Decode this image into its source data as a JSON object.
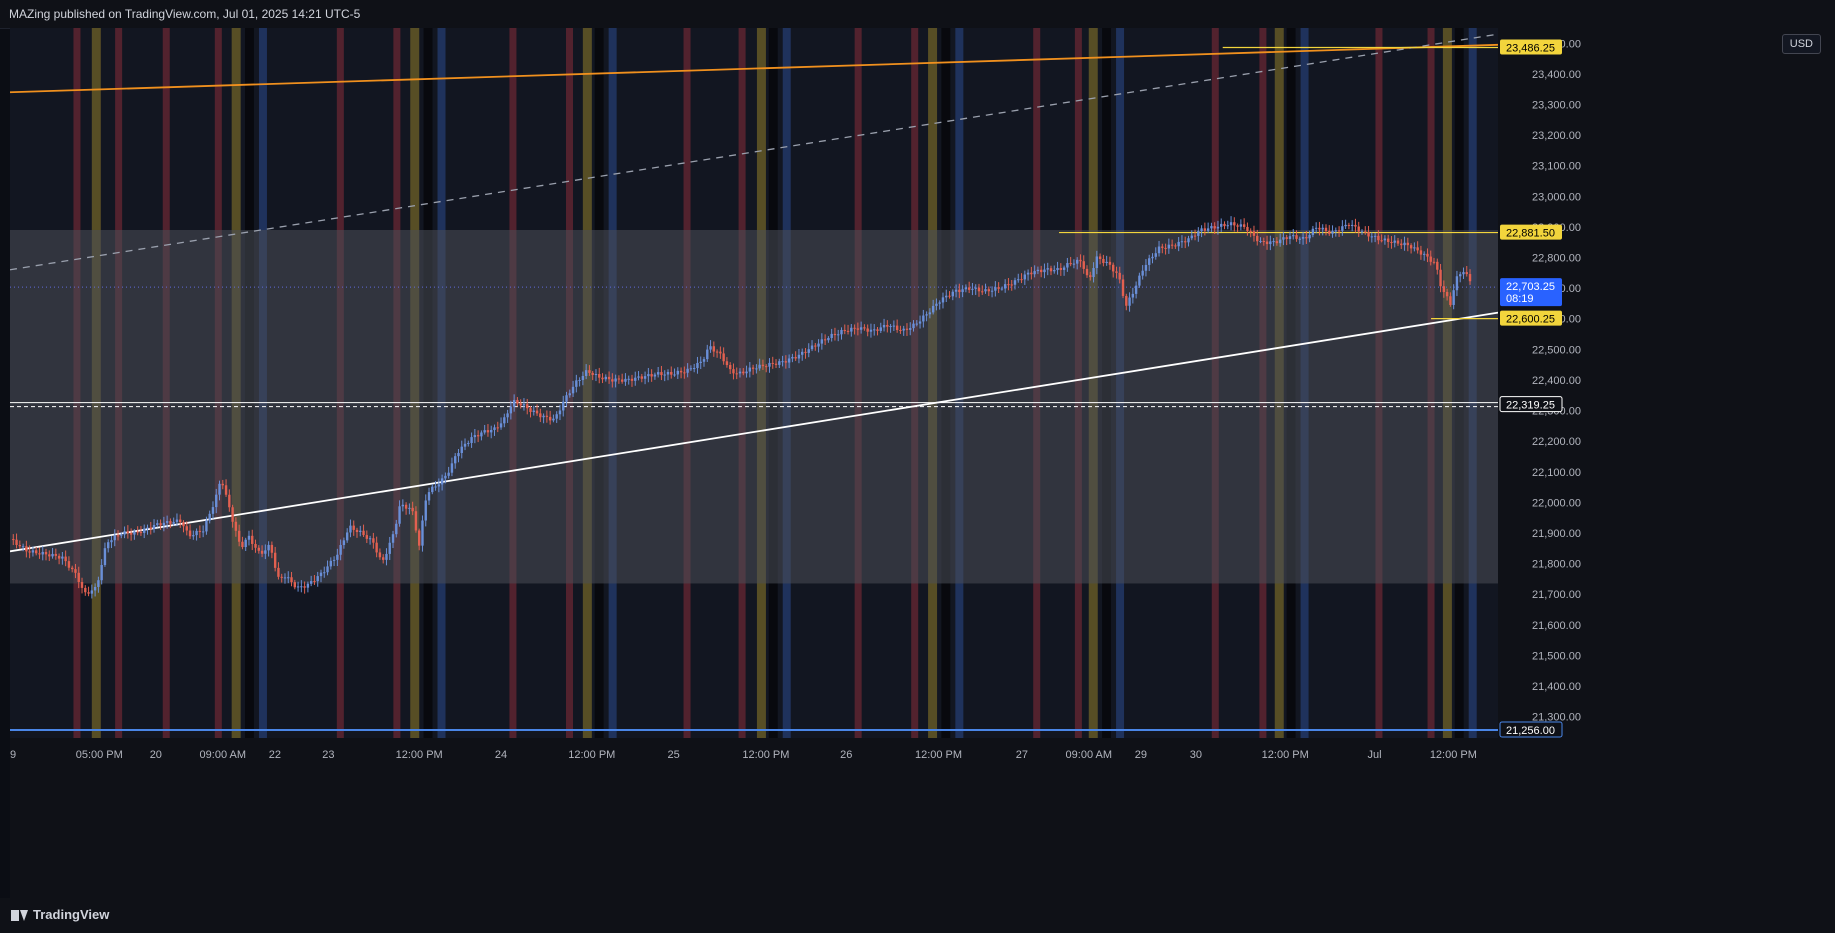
{
  "header": {
    "title": "MAZing published on TradingView.com, Jul 01, 2025 14:21 UTC-5"
  },
  "footer": {
    "brand": "TradingView"
  },
  "currency": "USD",
  "colors": {
    "bg": "#121621",
    "up": "#6a8fd8",
    "down": "#e26050",
    "band_fill": "#4a4e58",
    "stripe_red": "#5a2330",
    "stripe_gold": "#5f5426",
    "stripe_blue": "#213563",
    "orange": "#f0901e",
    "yellow": "#f2d53c",
    "white": "#ffffff",
    "blue_line": "#4a86e8"
  },
  "chart_data": {
    "type": "candlestick",
    "ylim": [
      21230,
      23550
    ],
    "y_ticks": [
      21300,
      21400,
      21500,
      21600,
      21700,
      21800,
      21900,
      22000,
      22100,
      22200,
      22300,
      22400,
      22500,
      22600,
      22700,
      22800,
      22900,
      23000,
      23100,
      23200,
      23300,
      23400,
      23500
    ],
    "y_tick_labels": [
      "21,300.00",
      "21,400.00",
      "21,500.00",
      "21,600.00",
      "21,700.00",
      "21,800.00",
      "21,900.00",
      "22,000.00",
      "22,100.00",
      "22,200.00",
      "22,300.00",
      "22,400.00",
      "22,500.00",
      "22,600.00",
      "22,700.00",
      "22,800.00",
      "22,900.00",
      "23,000.00",
      "23,100.00",
      "23,200.00",
      "23,300.00",
      "23,400.00",
      "23,500.00"
    ],
    "x_ticks": [
      {
        "pos": 0.0,
        "label": "9"
      },
      {
        "pos": 0.06,
        "label": "05:00 PM"
      },
      {
        "pos": 0.098,
        "label": "20"
      },
      {
        "pos": 0.143,
        "label": "09:00 AM"
      },
      {
        "pos": 0.178,
        "label": "22"
      },
      {
        "pos": 0.214,
        "label": "23"
      },
      {
        "pos": 0.275,
        "label": "12:00 PM"
      },
      {
        "pos": 0.33,
        "label": "24"
      },
      {
        "pos": 0.391,
        "label": "12:00 PM"
      },
      {
        "pos": 0.446,
        "label": "25"
      },
      {
        "pos": 0.508,
        "label": "12:00 PM"
      },
      {
        "pos": 0.562,
        "label": "26"
      },
      {
        "pos": 0.624,
        "label": "12:00 PM"
      },
      {
        "pos": 0.68,
        "label": "27"
      },
      {
        "pos": 0.725,
        "label": "09:00 AM"
      },
      {
        "pos": 0.76,
        "label": "29"
      },
      {
        "pos": 0.797,
        "label": "30"
      },
      {
        "pos": 0.857,
        "label": "12:00 PM"
      },
      {
        "pos": 0.917,
        "label": "Jul"
      },
      {
        "pos": 0.97,
        "label": "12:00 PM"
      }
    ],
    "price_path": [
      [
        0.0,
        21880
      ],
      [
        0.012,
        21840
      ],
      [
        0.025,
        21830
      ],
      [
        0.035,
        21820
      ],
      [
        0.045,
        21760
      ],
      [
        0.05,
        21700
      ],
      [
        0.058,
        21720
      ],
      [
        0.065,
        21870
      ],
      [
        0.075,
        21900
      ],
      [
        0.085,
        21900
      ],
      [
        0.1,
        21930
      ],
      [
        0.115,
        21940
      ],
      [
        0.12,
        21890
      ],
      [
        0.13,
        21910
      ],
      [
        0.138,
        22010
      ],
      [
        0.142,
        22080
      ],
      [
        0.148,
        21970
      ],
      [
        0.155,
        21850
      ],
      [
        0.16,
        21890
      ],
      [
        0.168,
        21830
      ],
      [
        0.175,
        21860
      ],
      [
        0.18,
        21750
      ],
      [
        0.185,
        21760
      ],
      [
        0.193,
        21720
      ],
      [
        0.2,
        21730
      ],
      [
        0.21,
        21770
      ],
      [
        0.22,
        21830
      ],
      [
        0.228,
        21920
      ],
      [
        0.236,
        21900
      ],
      [
        0.244,
        21870
      ],
      [
        0.25,
        21800
      ],
      [
        0.258,
        21900
      ],
      [
        0.262,
        21990
      ],
      [
        0.27,
        21980
      ],
      [
        0.275,
        21860
      ],
      [
        0.28,
        22030
      ],
      [
        0.29,
        22070
      ],
      [
        0.296,
        22110
      ],
      [
        0.3,
        22160
      ],
      [
        0.31,
        22210
      ],
      [
        0.318,
        22230
      ],
      [
        0.326,
        22240
      ],
      [
        0.332,
        22270
      ],
      [
        0.338,
        22330
      ],
      [
        0.344,
        22320
      ],
      [
        0.35,
        22300
      ],
      [
        0.358,
        22280
      ],
      [
        0.366,
        22270
      ],
      [
        0.372,
        22330
      ],
      [
        0.38,
        22390
      ],
      [
        0.388,
        22430
      ],
      [
        0.395,
        22410
      ],
      [
        0.405,
        22400
      ],
      [
        0.415,
        22400
      ],
      [
        0.425,
        22410
      ],
      [
        0.435,
        22420
      ],
      [
        0.445,
        22420
      ],
      [
        0.455,
        22430
      ],
      [
        0.465,
        22460
      ],
      [
        0.47,
        22510
      ],
      [
        0.478,
        22480
      ],
      [
        0.484,
        22430
      ],
      [
        0.49,
        22420
      ],
      [
        0.5,
        22440
      ],
      [
        0.51,
        22450
      ],
      [
        0.52,
        22460
      ],
      [
        0.53,
        22480
      ],
      [
        0.54,
        22510
      ],
      [
        0.55,
        22540
      ],
      [
        0.56,
        22560
      ],
      [
        0.57,
        22570
      ],
      [
        0.58,
        22560
      ],
      [
        0.59,
        22580
      ],
      [
        0.6,
        22560
      ],
      [
        0.608,
        22580
      ],
      [
        0.615,
        22610
      ],
      [
        0.625,
        22660
      ],
      [
        0.635,
        22690
      ],
      [
        0.645,
        22700
      ],
      [
        0.655,
        22690
      ],
      [
        0.665,
        22700
      ],
      [
        0.675,
        22720
      ],
      [
        0.685,
        22750
      ],
      [
        0.695,
        22760
      ],
      [
        0.705,
        22760
      ],
      [
        0.712,
        22780
      ],
      [
        0.72,
        22790
      ],
      [
        0.725,
        22720
      ],
      [
        0.73,
        22800
      ],
      [
        0.738,
        22780
      ],
      [
        0.745,
        22740
      ],
      [
        0.75,
        22640
      ],
      [
        0.756,
        22700
      ],
      [
        0.762,
        22770
      ],
      [
        0.772,
        22830
      ],
      [
        0.782,
        22840
      ],
      [
        0.792,
        22860
      ],
      [
        0.8,
        22890
      ],
      [
        0.81,
        22900
      ],
      [
        0.82,
        22910
      ],
      [
        0.83,
        22900
      ],
      [
        0.84,
        22850
      ],
      [
        0.85,
        22850
      ],
      [
        0.86,
        22870
      ],
      [
        0.87,
        22860
      ],
      [
        0.878,
        22900
      ],
      [
        0.888,
        22880
      ],
      [
        0.9,
        22910
      ],
      [
        0.91,
        22880
      ],
      [
        0.92,
        22860
      ],
      [
        0.93,
        22850
      ],
      [
        0.94,
        22840
      ],
      [
        0.95,
        22810
      ],
      [
        0.958,
        22780
      ],
      [
        0.962,
        22700
      ],
      [
        0.968,
        22650
      ],
      [
        0.972,
        22730
      ],
      [
        0.976,
        22760
      ],
      [
        0.982,
        22720
      ]
    ],
    "shaded_band": [
      21735,
      22890
    ],
    "stripes": [
      {
        "pos": 0.045,
        "kind": "red"
      },
      {
        "pos": 0.058,
        "kind": "gold"
      },
      {
        "pos": 0.073,
        "kind": "red"
      },
      {
        "pos": 0.105,
        "kind": "red"
      },
      {
        "pos": 0.14,
        "kind": "red"
      },
      {
        "pos": 0.152,
        "kind": "gold"
      },
      {
        "pos": 0.17,
        "kind": "blue"
      },
      {
        "pos": 0.222,
        "kind": "red"
      },
      {
        "pos": 0.26,
        "kind": "red"
      },
      {
        "pos": 0.272,
        "kind": "gold"
      },
      {
        "pos": 0.29,
        "kind": "blue"
      },
      {
        "pos": 0.338,
        "kind": "red"
      },
      {
        "pos": 0.376,
        "kind": "red"
      },
      {
        "pos": 0.388,
        "kind": "gold"
      },
      {
        "pos": 0.405,
        "kind": "blue"
      },
      {
        "pos": 0.455,
        "kind": "red"
      },
      {
        "pos": 0.492,
        "kind": "red"
      },
      {
        "pos": 0.505,
        "kind": "gold"
      },
      {
        "pos": 0.522,
        "kind": "blue"
      },
      {
        "pos": 0.57,
        "kind": "red"
      },
      {
        "pos": 0.608,
        "kind": "red"
      },
      {
        "pos": 0.62,
        "kind": "gold"
      },
      {
        "pos": 0.638,
        "kind": "blue"
      },
      {
        "pos": 0.69,
        "kind": "red"
      },
      {
        "pos": 0.718,
        "kind": "red"
      },
      {
        "pos": 0.728,
        "kind": "gold"
      },
      {
        "pos": 0.746,
        "kind": "blue"
      },
      {
        "pos": 0.81,
        "kind": "red"
      },
      {
        "pos": 0.842,
        "kind": "red"
      },
      {
        "pos": 0.853,
        "kind": "gold"
      },
      {
        "pos": 0.87,
        "kind": "blue"
      },
      {
        "pos": 0.92,
        "kind": "red"
      },
      {
        "pos": 0.955,
        "kind": "red"
      },
      {
        "pos": 0.966,
        "kind": "gold"
      },
      {
        "pos": 0.983,
        "kind": "blue"
      }
    ],
    "lines": [
      {
        "name": "orange-trend",
        "x0": 0.0,
        "y0": 23340,
        "x1": 1.0,
        "y1": 23495,
        "color": "orange",
        "dash": false
      },
      {
        "name": "dashed-trend",
        "x0": 0.0,
        "y0": 22760,
        "x1": 1.0,
        "y1": 23530,
        "color": "grey",
        "dash": true
      },
      {
        "name": "white-trend",
        "x0": 0.0,
        "y0": 21840,
        "x1": 1.0,
        "y1": 22620,
        "color": "white",
        "dash": false
      }
    ],
    "h_levels": [
      {
        "value": 23486.25,
        "label": "23,486.25",
        "x_start": 0.815,
        "style": "yellow"
      },
      {
        "value": 22881.5,
        "label": "22,881.50",
        "x_start": 0.705,
        "style": "yellow"
      },
      {
        "value": 22600.25,
        "label": "22,600.25",
        "x_start": 0.955,
        "style": "yellow"
      },
      {
        "value": 22319.25,
        "label": "22,319.25",
        "x_start": 0.0,
        "style": "white-double"
      },
      {
        "value": 21256.0,
        "label": "21,256.00",
        "x_start": 0.0,
        "style": "blue"
      }
    ],
    "current_price": {
      "value": 22703.25,
      "label": "22,703.25",
      "countdown": "08:19"
    }
  }
}
